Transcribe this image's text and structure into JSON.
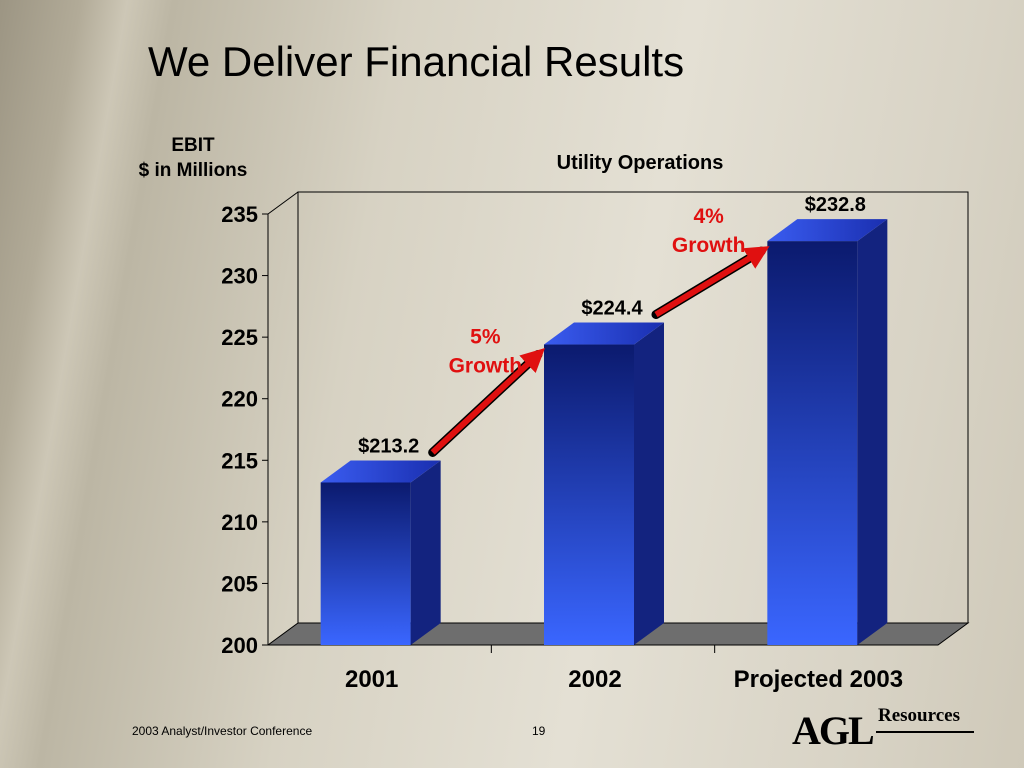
{
  "slide": {
    "title": "We Deliver Financial Results",
    "footer_left": "2003 Analyst/Investor Conference",
    "page_number": "19",
    "logo_text": "Resources",
    "logo_mark": "AGL"
  },
  "chart_data": {
    "type": "bar",
    "title": "Utility Operations",
    "ylabel_lines": [
      "EBIT",
      "$ in Millions"
    ],
    "xlabel": "",
    "categories": [
      "2001",
      "2002",
      "Projected 2003"
    ],
    "values": [
      213.2,
      224.4,
      232.8
    ],
    "data_labels": [
      "$213.2",
      "$224.4",
      "$232.8"
    ],
    "ylim": [
      200,
      235
    ],
    "yticks": [
      200,
      205,
      210,
      215,
      220,
      225,
      230,
      235
    ],
    "grid": false,
    "three_d": true,
    "colors": {
      "bar": "#2a4fe0",
      "bar_dark": "#0b1a6e",
      "bar_side": "#13237f",
      "arrow": "#e01010",
      "growth_text": "#e01010",
      "floor": "#6e6e6e"
    },
    "annotations": [
      {
        "text_lines": [
          "5%",
          "Growth"
        ],
        "from": "2001",
        "to": "2002"
      },
      {
        "text_lines": [
          "4%",
          "Growth"
        ],
        "from": "2002",
        "to": "Projected 2003"
      }
    ]
  }
}
